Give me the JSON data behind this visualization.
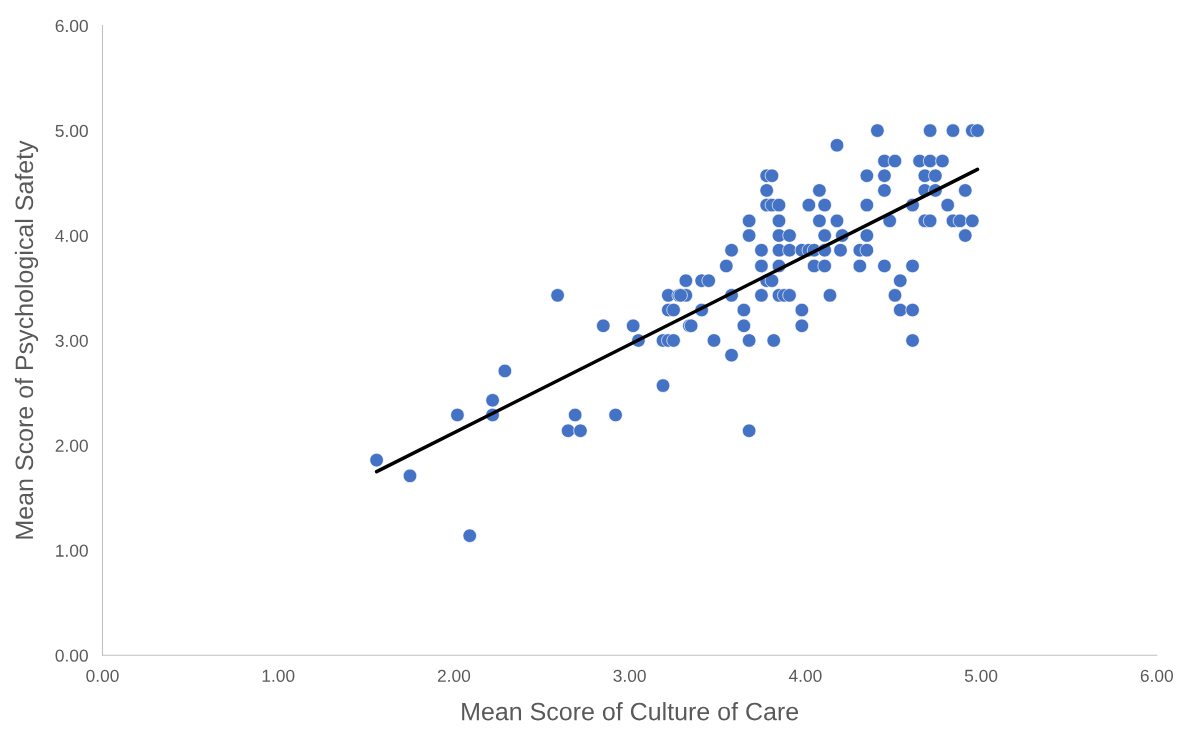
{
  "chart_data": {
    "type": "scatter",
    "xlabel": "Mean Score of Culture of Care",
    "ylabel": "Mean Score of Psychological Safety",
    "xlim": [
      0,
      6
    ],
    "ylim": [
      0,
      6
    ],
    "xticks": [
      {
        "value": 0,
        "label": "0.00"
      },
      {
        "value": 1,
        "label": "1.00"
      },
      {
        "value": 2,
        "label": "2.00"
      },
      {
        "value": 3,
        "label": "3.00"
      },
      {
        "value": 4,
        "label": "4.00"
      },
      {
        "value": 5,
        "label": "5.00"
      },
      {
        "value": 6,
        "label": "6.00"
      }
    ],
    "yticks": [
      {
        "value": 0,
        "label": "0.00"
      },
      {
        "value": 1,
        "label": "1.00"
      },
      {
        "value": 2,
        "label": "2.00"
      },
      {
        "value": 3,
        "label": "3.00"
      },
      {
        "value": 4,
        "label": "4.00"
      },
      {
        "value": 5,
        "label": "5.00"
      },
      {
        "value": 6,
        "label": "6.00"
      }
    ],
    "grid": false,
    "legend": false,
    "marker": "circle",
    "series": [
      {
        "color": "#4472c4",
        "x": [
          1.56,
          1.75,
          2.09,
          2.02,
          2.22,
          2.22,
          2.29,
          2.59,
          2.69,
          2.65,
          2.72,
          2.85,
          2.92,
          3.02,
          3.05,
          3.19,
          3.19,
          3.22,
          3.25,
          3.22,
          3.25,
          3.22,
          3.28,
          3.32,
          3.32,
          3.34,
          4.18,
          3.78,
          3.81,
          3.78,
          3.78,
          3.81,
          3.85,
          4.02,
          4.08,
          4.11,
          3.68,
          3.85,
          4.08,
          4.18,
          3.68,
          3.85,
          3.91,
          4.11,
          3.58,
          3.75,
          3.85,
          3.91,
          3.98,
          4.02,
          4.05,
          4.11,
          4.2,
          3.55,
          3.75,
          3.85,
          4.05,
          4.11,
          3.41,
          3.45,
          3.78,
          3.81,
          3.29,
          3.58,
          3.75,
          3.85,
          3.88,
          3.91,
          4.14,
          3.41,
          3.65,
          3.98,
          3.35,
          3.65,
          3.98,
          3.48,
          3.68,
          3.82,
          3.58,
          3.68,
          4.41,
          4.71,
          4.84,
          4.95,
          4.98,
          4.45,
          4.51,
          4.65,
          4.71,
          4.78,
          4.35,
          4.45,
          4.68,
          4.74,
          4.45,
          4.68,
          4.74,
          4.91,
          4.35,
          4.61,
          4.81,
          4.48,
          4.68,
          4.71,
          4.84,
          4.88,
          4.95,
          4.21,
          4.35,
          4.91,
          4.31,
          4.35,
          4.31,
          4.45,
          4.61,
          4.54,
          4.51,
          4.54,
          4.61,
          4.61
        ],
        "values": [
          1.86,
          1.71,
          1.14,
          2.29,
          2.43,
          2.29,
          2.71,
          3.43,
          2.29,
          2.14,
          2.14,
          3.14,
          2.29,
          3.14,
          3.0,
          2.57,
          3.0,
          3.0,
          3.0,
          3.29,
          3.29,
          3.43,
          3.43,
          3.43,
          3.57,
          3.14,
          4.86,
          4.57,
          4.57,
          4.43,
          4.29,
          4.29,
          4.29,
          4.29,
          4.43,
          4.29,
          4.14,
          4.14,
          4.14,
          4.14,
          4.0,
          4.0,
          4.0,
          4.0,
          3.86,
          3.86,
          3.86,
          3.86,
          3.86,
          3.86,
          3.86,
          3.86,
          3.86,
          3.71,
          3.71,
          3.71,
          3.71,
          3.71,
          3.57,
          3.57,
          3.57,
          3.57,
          3.43,
          3.43,
          3.43,
          3.43,
          3.43,
          3.43,
          3.43,
          3.29,
          3.29,
          3.29,
          3.14,
          3.14,
          3.14,
          3.0,
          3.0,
          3.0,
          2.86,
          2.14,
          5.0,
          5.0,
          5.0,
          5.0,
          5.0,
          4.71,
          4.71,
          4.71,
          4.71,
          4.71,
          4.57,
          4.57,
          4.57,
          4.57,
          4.43,
          4.43,
          4.43,
          4.43,
          4.29,
          4.29,
          4.29,
          4.14,
          4.14,
          4.14,
          4.14,
          4.14,
          4.14,
          4.0,
          4.0,
          4.0,
          3.86,
          3.86,
          3.71,
          3.71,
          3.71,
          3.57,
          3.43,
          3.29,
          3.29,
          3.0
        ]
      },
      {
        "type": "line",
        "color": "#000000",
        "marker": "none",
        "x": [
          1.56,
          4.98
        ],
        "values": [
          1.75,
          4.63
        ]
      }
    ]
  }
}
